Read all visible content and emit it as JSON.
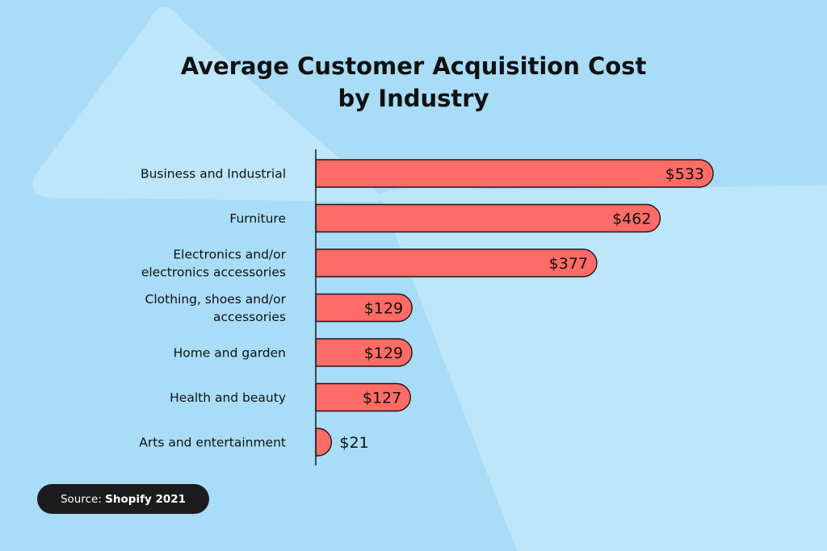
{
  "colors": {
    "background": "#a9dcf6",
    "shape": "#bde6fb",
    "bar_fill": "#ff6b66",
    "bar_stroke": "#1a1a1a",
    "text": "#111111",
    "source_bg": "#1c1c1e"
  },
  "chart_data": {
    "type": "bar",
    "orientation": "horizontal",
    "title_lines": [
      "Average Customer Acquisition Cost",
      "by Industry"
    ],
    "categories": [
      [
        "Business and Industrial"
      ],
      [
        "Furniture"
      ],
      [
        "Electronics and/or",
        "electronics accessories"
      ],
      [
        "Clothing, shoes and/or",
        "accessories"
      ],
      [
        "Home and garden"
      ],
      [
        "Health and beauty"
      ],
      [
        "Arts and entertainment"
      ]
    ],
    "values": [
      533,
      462,
      377,
      129,
      129,
      127,
      21
    ],
    "value_labels": [
      "$533",
      "$462",
      "$377",
      "$129",
      "$129",
      "$127",
      "$21"
    ],
    "xlabel": "",
    "ylabel": "",
    "grid": false
  },
  "source": {
    "prefix": "Source: ",
    "name": "Shopify 2021"
  }
}
